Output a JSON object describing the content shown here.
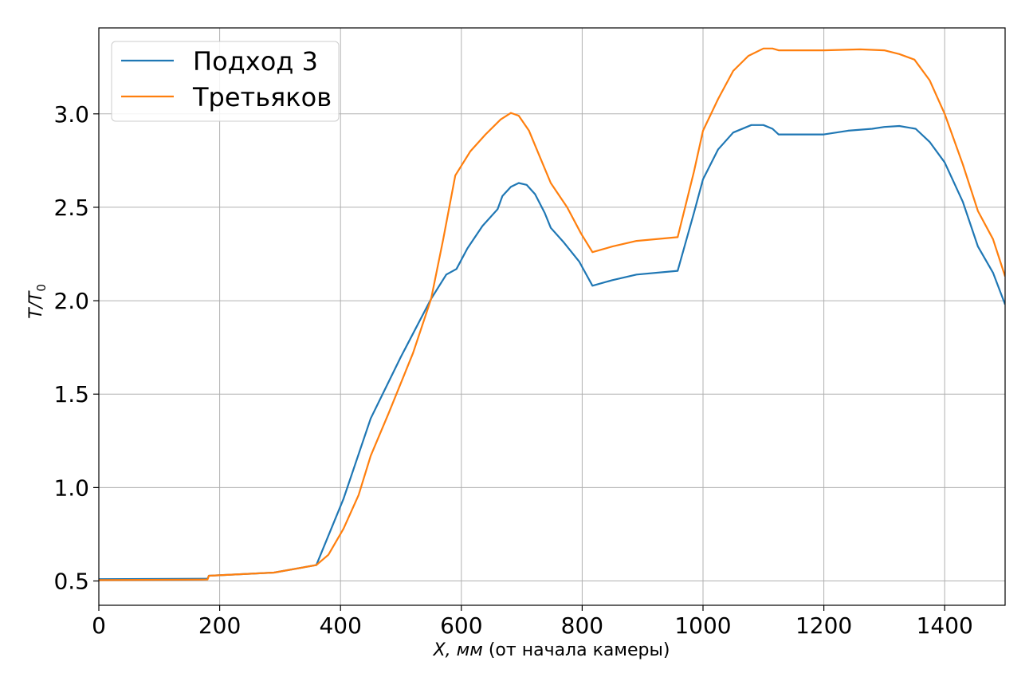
{
  "chart_data": {
    "type": "line",
    "title": "",
    "xlabel_var": "X, мм",
    "xlabel_rest": " (от начала камеры)",
    "ylabel": "T/T",
    "ylabel_sub": "0",
    "xlim": [
      0,
      1500
    ],
    "ylim": [
      0.37,
      3.46
    ],
    "xticks": [
      0,
      200,
      400,
      600,
      800,
      1000,
      1200,
      1400
    ],
    "yticks": [
      0.5,
      1.0,
      1.5,
      2.0,
      2.5,
      3.0
    ],
    "xtick_labels": [
      "0",
      "200",
      "400",
      "600",
      "800",
      "1000",
      "1200",
      "1400"
    ],
    "ytick_labels": [
      "0.5",
      "1.0",
      "1.5",
      "2.0",
      "2.5",
      "3.0"
    ],
    "grid": true,
    "legend_position": "top-left",
    "series": [
      {
        "name": "Подход 3",
        "color": "#1f77b4",
        "points": [
          [
            0,
            0.51
          ],
          [
            180,
            0.512
          ],
          [
            182,
            0.528
          ],
          [
            290,
            0.545
          ],
          [
            360,
            0.585
          ],
          [
            405,
            0.94
          ],
          [
            450,
            1.37
          ],
          [
            500,
            1.7
          ],
          [
            550,
            2.01
          ],
          [
            575,
            2.14
          ],
          [
            592,
            2.17
          ],
          [
            610,
            2.28
          ],
          [
            635,
            2.4
          ],
          [
            660,
            2.49
          ],
          [
            668,
            2.56
          ],
          [
            682,
            2.61
          ],
          [
            695,
            2.63
          ],
          [
            708,
            2.62
          ],
          [
            722,
            2.57
          ],
          [
            738,
            2.47
          ],
          [
            748,
            2.39
          ],
          [
            770,
            2.31
          ],
          [
            795,
            2.21
          ],
          [
            817,
            2.08
          ],
          [
            850,
            2.11
          ],
          [
            890,
            2.14
          ],
          [
            958,
            2.16
          ],
          [
            985,
            2.47
          ],
          [
            1000,
            2.65
          ],
          [
            1025,
            2.81
          ],
          [
            1050,
            2.9
          ],
          [
            1080,
            2.94
          ],
          [
            1100,
            2.94
          ],
          [
            1115,
            2.92
          ],
          [
            1125,
            2.89
          ],
          [
            1200,
            2.89
          ],
          [
            1240,
            2.91
          ],
          [
            1280,
            2.92
          ],
          [
            1300,
            2.93
          ],
          [
            1325,
            2.935
          ],
          [
            1352,
            2.92
          ],
          [
            1375,
            2.85
          ],
          [
            1400,
            2.74
          ],
          [
            1430,
            2.53
          ],
          [
            1455,
            2.29
          ],
          [
            1480,
            2.15
          ],
          [
            1500,
            1.98
          ]
        ]
      },
      {
        "name": "Третьяков",
        "color": "#ff7f0e",
        "points": [
          [
            0,
            0.505
          ],
          [
            180,
            0.508
          ],
          [
            182,
            0.528
          ],
          [
            290,
            0.545
          ],
          [
            360,
            0.585
          ],
          [
            380,
            0.64
          ],
          [
            405,
            0.78
          ],
          [
            430,
            0.96
          ],
          [
            450,
            1.17
          ],
          [
            480,
            1.4
          ],
          [
            520,
            1.72
          ],
          [
            550,
            2.01
          ],
          [
            570,
            2.33
          ],
          [
            590,
            2.67
          ],
          [
            615,
            2.8
          ],
          [
            640,
            2.89
          ],
          [
            665,
            2.97
          ],
          [
            682,
            3.005
          ],
          [
            695,
            2.99
          ],
          [
            712,
            2.91
          ],
          [
            730,
            2.77
          ],
          [
            748,
            2.63
          ],
          [
            775,
            2.5
          ],
          [
            798,
            2.36
          ],
          [
            817,
            2.26
          ],
          [
            850,
            2.29
          ],
          [
            890,
            2.32
          ],
          [
            958,
            2.34
          ],
          [
            985,
            2.69
          ],
          [
            1000,
            2.91
          ],
          [
            1025,
            3.08
          ],
          [
            1050,
            3.23
          ],
          [
            1075,
            3.31
          ],
          [
            1100,
            3.35
          ],
          [
            1115,
            3.35
          ],
          [
            1125,
            3.34
          ],
          [
            1200,
            3.34
          ],
          [
            1260,
            3.345
          ],
          [
            1300,
            3.34
          ],
          [
            1325,
            3.32
          ],
          [
            1350,
            3.29
          ],
          [
            1375,
            3.18
          ],
          [
            1400,
            3.0
          ],
          [
            1430,
            2.73
          ],
          [
            1455,
            2.48
          ],
          [
            1480,
            2.33
          ],
          [
            1500,
            2.13
          ]
        ]
      }
    ]
  }
}
